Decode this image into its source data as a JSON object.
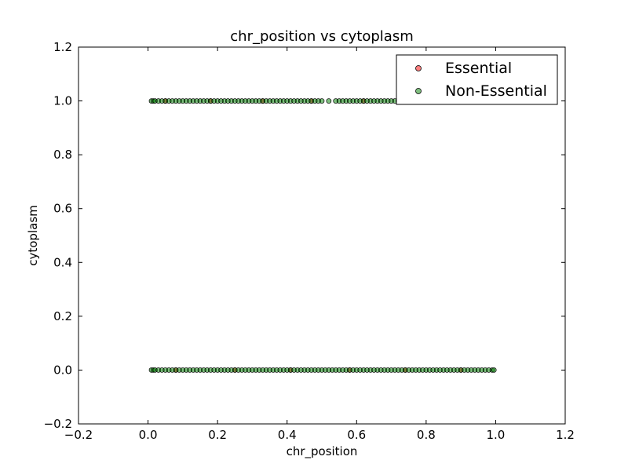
{
  "chart_data": {
    "type": "scatter",
    "title": "chr_position vs cytoplasm",
    "xlabel": "chr_position",
    "ylabel": "cytoplasm",
    "xlim": [
      -0.2,
      1.2
    ],
    "ylim": [
      -0.2,
      1.2
    ],
    "xticks": [
      "−0.2",
      "0.0",
      "0.2",
      "0.4",
      "0.6",
      "0.8",
      "1.0",
      "1.2"
    ],
    "yticks": [
      "−0.2",
      "0.0",
      "0.2",
      "0.4",
      "0.6",
      "0.8",
      "1.0",
      "1.2"
    ],
    "grid": false,
    "legend_position": "top-right",
    "series": [
      {
        "name": "Essential",
        "color": "#ff0000",
        "points": [
          {
            "x": 0.05,
            "y": 1
          },
          {
            "x": 0.18,
            "y": 1
          },
          {
            "x": 0.33,
            "y": 1
          },
          {
            "x": 0.47,
            "y": 1
          },
          {
            "x": 0.62,
            "y": 1
          },
          {
            "x": 0.08,
            "y": 0
          },
          {
            "x": 0.25,
            "y": 0
          },
          {
            "x": 0.41,
            "y": 0
          },
          {
            "x": 0.58,
            "y": 0
          },
          {
            "x": 0.74,
            "y": 0
          },
          {
            "x": 0.9,
            "y": 0
          }
        ]
      },
      {
        "name": "Non-Essential",
        "color": "#008000",
        "points": [
          {
            "x": 0.01,
            "y": 1
          },
          {
            "x": 0.015,
            "y": 1
          },
          {
            "x": 0.02,
            "y": 1
          },
          {
            "x": 0.03,
            "y": 1
          },
          {
            "x": 0.04,
            "y": 1
          },
          {
            "x": 0.05,
            "y": 1
          },
          {
            "x": 0.06,
            "y": 1
          },
          {
            "x": 0.07,
            "y": 1
          },
          {
            "x": 0.08,
            "y": 1
          },
          {
            "x": 0.09,
            "y": 1
          },
          {
            "x": 0.1,
            "y": 1
          },
          {
            "x": 0.11,
            "y": 1
          },
          {
            "x": 0.12,
            "y": 1
          },
          {
            "x": 0.13,
            "y": 1
          },
          {
            "x": 0.14,
            "y": 1
          },
          {
            "x": 0.15,
            "y": 1
          },
          {
            "x": 0.16,
            "y": 1
          },
          {
            "x": 0.17,
            "y": 1
          },
          {
            "x": 0.18,
            "y": 1
          },
          {
            "x": 0.19,
            "y": 1
          },
          {
            "x": 0.2,
            "y": 1
          },
          {
            "x": 0.21,
            "y": 1
          },
          {
            "x": 0.22,
            "y": 1
          },
          {
            "x": 0.23,
            "y": 1
          },
          {
            "x": 0.24,
            "y": 1
          },
          {
            "x": 0.25,
            "y": 1
          },
          {
            "x": 0.26,
            "y": 1
          },
          {
            "x": 0.27,
            "y": 1
          },
          {
            "x": 0.28,
            "y": 1
          },
          {
            "x": 0.29,
            "y": 1
          },
          {
            "x": 0.3,
            "y": 1
          },
          {
            "x": 0.31,
            "y": 1
          },
          {
            "x": 0.32,
            "y": 1
          },
          {
            "x": 0.33,
            "y": 1
          },
          {
            "x": 0.34,
            "y": 1
          },
          {
            "x": 0.35,
            "y": 1
          },
          {
            "x": 0.36,
            "y": 1
          },
          {
            "x": 0.37,
            "y": 1
          },
          {
            "x": 0.38,
            "y": 1
          },
          {
            "x": 0.39,
            "y": 1
          },
          {
            "x": 0.4,
            "y": 1
          },
          {
            "x": 0.41,
            "y": 1
          },
          {
            "x": 0.42,
            "y": 1
          },
          {
            "x": 0.43,
            "y": 1
          },
          {
            "x": 0.44,
            "y": 1
          },
          {
            "x": 0.45,
            "y": 1
          },
          {
            "x": 0.46,
            "y": 1
          },
          {
            "x": 0.47,
            "y": 1
          },
          {
            "x": 0.48,
            "y": 1
          },
          {
            "x": 0.49,
            "y": 1
          },
          {
            "x": 0.5,
            "y": 1
          },
          {
            "x": 0.52,
            "y": 1
          },
          {
            "x": 0.54,
            "y": 1
          },
          {
            "x": 0.55,
            "y": 1
          },
          {
            "x": 0.56,
            "y": 1
          },
          {
            "x": 0.57,
            "y": 1
          },
          {
            "x": 0.58,
            "y": 1
          },
          {
            "x": 0.59,
            "y": 1
          },
          {
            "x": 0.6,
            "y": 1
          },
          {
            "x": 0.61,
            "y": 1
          },
          {
            "x": 0.62,
            "y": 1
          },
          {
            "x": 0.63,
            "y": 1
          },
          {
            "x": 0.64,
            "y": 1
          },
          {
            "x": 0.65,
            "y": 1
          },
          {
            "x": 0.66,
            "y": 1
          },
          {
            "x": 0.67,
            "y": 1
          },
          {
            "x": 0.68,
            "y": 1
          },
          {
            "x": 0.69,
            "y": 1
          },
          {
            "x": 0.7,
            "y": 1
          },
          {
            "x": 0.71,
            "y": 1
          },
          {
            "x": 0.72,
            "y": 1
          },
          {
            "x": 0.01,
            "y": 0
          },
          {
            "x": 0.015,
            "y": 0
          },
          {
            "x": 0.02,
            "y": 0
          },
          {
            "x": 0.03,
            "y": 0
          },
          {
            "x": 0.04,
            "y": 0
          },
          {
            "x": 0.05,
            "y": 0
          },
          {
            "x": 0.06,
            "y": 0
          },
          {
            "x": 0.07,
            "y": 0
          },
          {
            "x": 0.08,
            "y": 0
          },
          {
            "x": 0.09,
            "y": 0
          },
          {
            "x": 0.1,
            "y": 0
          },
          {
            "x": 0.11,
            "y": 0
          },
          {
            "x": 0.12,
            "y": 0
          },
          {
            "x": 0.13,
            "y": 0
          },
          {
            "x": 0.14,
            "y": 0
          },
          {
            "x": 0.15,
            "y": 0
          },
          {
            "x": 0.16,
            "y": 0
          },
          {
            "x": 0.17,
            "y": 0
          },
          {
            "x": 0.18,
            "y": 0
          },
          {
            "x": 0.19,
            "y": 0
          },
          {
            "x": 0.2,
            "y": 0
          },
          {
            "x": 0.21,
            "y": 0
          },
          {
            "x": 0.22,
            "y": 0
          },
          {
            "x": 0.23,
            "y": 0
          },
          {
            "x": 0.24,
            "y": 0
          },
          {
            "x": 0.25,
            "y": 0
          },
          {
            "x": 0.26,
            "y": 0
          },
          {
            "x": 0.27,
            "y": 0
          },
          {
            "x": 0.28,
            "y": 0
          },
          {
            "x": 0.29,
            "y": 0
          },
          {
            "x": 0.3,
            "y": 0
          },
          {
            "x": 0.31,
            "y": 0
          },
          {
            "x": 0.32,
            "y": 0
          },
          {
            "x": 0.33,
            "y": 0
          },
          {
            "x": 0.34,
            "y": 0
          },
          {
            "x": 0.35,
            "y": 0
          },
          {
            "x": 0.36,
            "y": 0
          },
          {
            "x": 0.37,
            "y": 0
          },
          {
            "x": 0.38,
            "y": 0
          },
          {
            "x": 0.39,
            "y": 0
          },
          {
            "x": 0.4,
            "y": 0
          },
          {
            "x": 0.41,
            "y": 0
          },
          {
            "x": 0.42,
            "y": 0
          },
          {
            "x": 0.43,
            "y": 0
          },
          {
            "x": 0.44,
            "y": 0
          },
          {
            "x": 0.45,
            "y": 0
          },
          {
            "x": 0.46,
            "y": 0
          },
          {
            "x": 0.47,
            "y": 0
          },
          {
            "x": 0.48,
            "y": 0
          },
          {
            "x": 0.49,
            "y": 0
          },
          {
            "x": 0.5,
            "y": 0
          },
          {
            "x": 0.51,
            "y": 0
          },
          {
            "x": 0.52,
            "y": 0
          },
          {
            "x": 0.53,
            "y": 0
          },
          {
            "x": 0.54,
            "y": 0
          },
          {
            "x": 0.55,
            "y": 0
          },
          {
            "x": 0.56,
            "y": 0
          },
          {
            "x": 0.57,
            "y": 0
          },
          {
            "x": 0.58,
            "y": 0
          },
          {
            "x": 0.59,
            "y": 0
          },
          {
            "x": 0.6,
            "y": 0
          },
          {
            "x": 0.61,
            "y": 0
          },
          {
            "x": 0.62,
            "y": 0
          },
          {
            "x": 0.63,
            "y": 0
          },
          {
            "x": 0.64,
            "y": 0
          },
          {
            "x": 0.65,
            "y": 0
          },
          {
            "x": 0.66,
            "y": 0
          },
          {
            "x": 0.67,
            "y": 0
          },
          {
            "x": 0.68,
            "y": 0
          },
          {
            "x": 0.69,
            "y": 0
          },
          {
            "x": 0.7,
            "y": 0
          },
          {
            "x": 0.71,
            "y": 0
          },
          {
            "x": 0.72,
            "y": 0
          },
          {
            "x": 0.73,
            "y": 0
          },
          {
            "x": 0.74,
            "y": 0
          },
          {
            "x": 0.75,
            "y": 0
          },
          {
            "x": 0.76,
            "y": 0
          },
          {
            "x": 0.77,
            "y": 0
          },
          {
            "x": 0.78,
            "y": 0
          },
          {
            "x": 0.79,
            "y": 0
          },
          {
            "x": 0.8,
            "y": 0
          },
          {
            "x": 0.81,
            "y": 0
          },
          {
            "x": 0.82,
            "y": 0
          },
          {
            "x": 0.83,
            "y": 0
          },
          {
            "x": 0.84,
            "y": 0
          },
          {
            "x": 0.85,
            "y": 0
          },
          {
            "x": 0.86,
            "y": 0
          },
          {
            "x": 0.87,
            "y": 0
          },
          {
            "x": 0.88,
            "y": 0
          },
          {
            "x": 0.89,
            "y": 0
          },
          {
            "x": 0.9,
            "y": 0
          },
          {
            "x": 0.91,
            "y": 0
          },
          {
            "x": 0.92,
            "y": 0
          },
          {
            "x": 0.93,
            "y": 0
          },
          {
            "x": 0.94,
            "y": 0
          },
          {
            "x": 0.95,
            "y": 0
          },
          {
            "x": 0.96,
            "y": 0
          },
          {
            "x": 0.97,
            "y": 0
          },
          {
            "x": 0.98,
            "y": 0
          },
          {
            "x": 0.99,
            "y": 0
          },
          {
            "x": 0.995,
            "y": 0
          }
        ]
      }
    ]
  }
}
